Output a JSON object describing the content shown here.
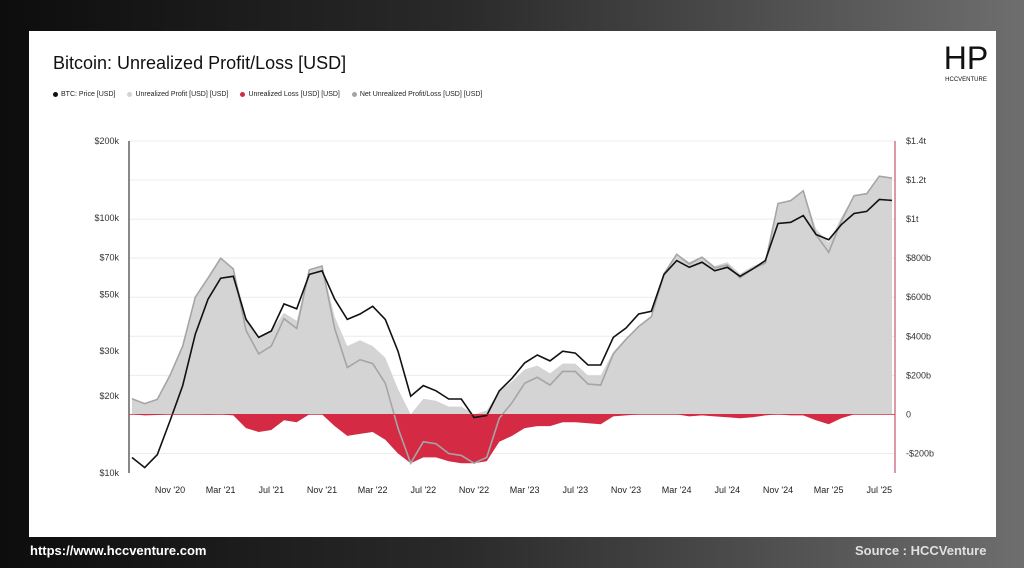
{
  "footer": {
    "url": "https://www.hccventure.com",
    "source": "Source : HCCVenture"
  },
  "logo": {
    "letters": "HP",
    "text": "HCCVENTURE"
  },
  "colors": {
    "price": "#111111",
    "profit": "#d4d4d4",
    "loss": "#d42a44",
    "net": "#a5a5a5",
    "right_axis": "#b8344e"
  },
  "chart_data": {
    "type": "area",
    "title": "Bitcoin: Unrealized Profit/Loss [USD]",
    "legend": [
      {
        "label": "BTC: Price [USD]",
        "color": "#111111"
      },
      {
        "label": "Unrealized Profit [USD] [USD]",
        "color": "#d4d4d4"
      },
      {
        "label": "Unrealized Loss [USD] [USD]",
        "color": "#d42a44"
      },
      {
        "label": "Net Unrealized Profit/Loss [USD] [USD]",
        "color": "#a5a5a5"
      }
    ],
    "x_ticks": [
      "Nov '20",
      "Mar '21",
      "Jul '21",
      "Nov '21",
      "Mar '22",
      "Jul '22",
      "Nov '22",
      "Mar '23",
      "Jul '23",
      "Nov '23",
      "Mar '24",
      "Jul '24",
      "Nov '24",
      "Mar '25",
      "Jul '25"
    ],
    "y_left": {
      "scale": "log",
      "range": [
        10000,
        200000
      ],
      "tick_values": [
        10000,
        20000,
        30000,
        50000,
        70000,
        100000,
        200000
      ],
      "tick_labels": [
        "$10k",
        "$20k",
        "$30k",
        "$50k",
        "$70k",
        "$100k",
        "$200k"
      ]
    },
    "y_right": {
      "scale": "linear",
      "range_usd_billions": [
        -300,
        1400
      ],
      "tick_values": [
        -200,
        0,
        200,
        400,
        600,
        800,
        1000,
        1200,
        1400
      ],
      "tick_labels": [
        "-$200b",
        "0",
        "$200b",
        "$400b",
        "$600b",
        "$800b",
        "$1t",
        "$1.2t",
        "$1.4t"
      ]
    },
    "x": [
      "2020-08",
      "2020-09",
      "2020-10",
      "2020-11",
      "2020-12",
      "2021-01",
      "2021-02",
      "2021-03",
      "2021-04",
      "2021-05",
      "2021-06",
      "2021-07",
      "2021-08",
      "2021-09",
      "2021-10",
      "2021-11",
      "2021-12",
      "2022-01",
      "2022-02",
      "2022-03",
      "2022-04",
      "2022-05",
      "2022-06",
      "2022-07",
      "2022-08",
      "2022-09",
      "2022-10",
      "2022-11",
      "2022-12",
      "2023-01",
      "2023-02",
      "2023-03",
      "2023-04",
      "2023-05",
      "2023-06",
      "2023-07",
      "2023-08",
      "2023-09",
      "2023-10",
      "2023-11",
      "2023-12",
      "2024-01",
      "2024-02",
      "2024-03",
      "2024-04",
      "2024-05",
      "2024-06",
      "2024-07",
      "2024-08",
      "2024-09",
      "2024-10",
      "2024-11",
      "2024-12",
      "2025-01",
      "2025-02",
      "2025-03",
      "2025-04",
      "2025-05",
      "2025-06",
      "2025-07",
      "2025-08"
    ],
    "series": [
      {
        "name": "BTC: Price [USD]",
        "axis": "left",
        "values": [
          11500,
          10500,
          11800,
          16000,
          22000,
          35000,
          48000,
          58000,
          59000,
          40000,
          34000,
          36000,
          46000,
          44000,
          60000,
          62000,
          48000,
          40000,
          42000,
          45000,
          40000,
          30000,
          20000,
          22000,
          21000,
          19500,
          19500,
          16500,
          16800,
          21000,
          23500,
          27000,
          29000,
          27500,
          30000,
          29500,
          26500,
          26500,
          34000,
          37000,
          42000,
          43000,
          60000,
          68000,
          64000,
          67000,
          62000,
          64000,
          59000,
          63000,
          68000,
          95000,
          96000,
          102000,
          86000,
          82000,
          94000,
          104000,
          106000,
          118000,
          117000
        ]
      },
      {
        "name": "Unrealized Profit [USD] [USD]",
        "axis": "right",
        "values": [
          80,
          60,
          80,
          200,
          350,
          600,
          700,
          800,
          750,
          500,
          400,
          430,
          520,
          480,
          740,
          760,
          500,
          350,
          380,
          350,
          290,
          130,
          0,
          80,
          70,
          40,
          40,
          0,
          20,
          120,
          170,
          230,
          250,
          210,
          260,
          260,
          200,
          200,
          320,
          390,
          450,
          500,
          720,
          820,
          780,
          810,
          760,
          780,
          720,
          760,
          780,
          1080,
          1100,
          1150,
          950,
          880,
          1010,
          1120,
          1130,
          1220,
          1210
        ]
      },
      {
        "name": "Unrealized Loss [USD] [USD]",
        "axis": "right",
        "values": [
          0,
          -5,
          -3,
          0,
          0,
          0,
          -2,
          0,
          -5,
          -70,
          -90,
          -80,
          -30,
          -40,
          0,
          0,
          -60,
          -110,
          -100,
          -90,
          -130,
          -200,
          -250,
          -220,
          -220,
          -240,
          -250,
          -250,
          -240,
          -140,
          -110,
          -70,
          -60,
          -60,
          -40,
          -40,
          -45,
          -50,
          -10,
          -5,
          0,
          0,
          0,
          0,
          -10,
          -5,
          -10,
          -15,
          -20,
          -15,
          -5,
          0,
          -5,
          -5,
          -30,
          -50,
          -20,
          0,
          0,
          0,
          0
        ]
      },
      {
        "name": "Net Unrealized Profit/Loss [USD] [USD]",
        "axis": "right",
        "values": [
          80,
          55,
          77,
          200,
          350,
          600,
          698,
          800,
          745,
          430,
          310,
          350,
          490,
          440,
          740,
          760,
          440,
          240,
          280,
          260,
          160,
          -70,
          -250,
          -140,
          -150,
          -200,
          -210,
          -250,
          -220,
          -20,
          60,
          160,
          190,
          150,
          220,
          220,
          155,
          150,
          310,
          385,
          450,
          500,
          720,
          820,
          770,
          805,
          750,
          765,
          700,
          745,
          775,
          1080,
          1095,
          1145,
          920,
          830,
          990,
          1120,
          1130,
          1220,
          1210
        ]
      }
    ]
  }
}
